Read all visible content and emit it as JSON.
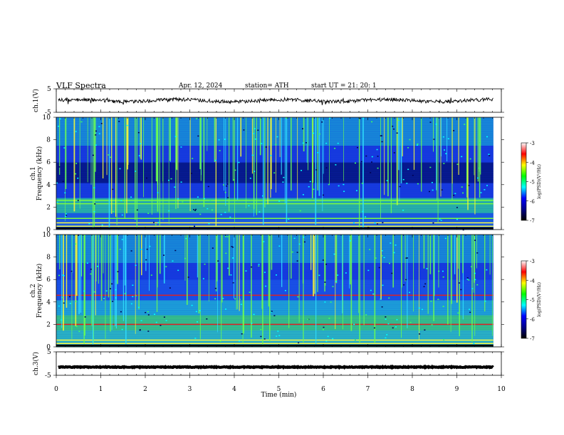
{
  "header": {
    "title": "VLF Spectra",
    "date": "Apr. 12, 2024",
    "station": "station= ATH",
    "start": "start UT = 21: 20: 1"
  },
  "colors": {
    "spectrogram_scale": [
      "#000000",
      "#00008b",
      "#0000ff",
      "#00ffff",
      "#00ff00",
      "#ffff00",
      "#ff0000",
      "#ffffff"
    ],
    "trace": "#000000"
  },
  "chart_data": [
    {
      "id": "ch1-waveform",
      "type": "line",
      "ylabel": "ch.1(V)",
      "ylim": [
        -5,
        5
      ],
      "yticks": [
        "5",
        "-5"
      ],
      "xlim": [
        0,
        10
      ],
      "trace_level": 0,
      "grid": false
    },
    {
      "id": "ch1-spectrogram",
      "type": "heatmap",
      "ylabel_top": "ch.1",
      "ylabel": "Frequency (kHz)",
      "ylim": [
        0,
        10
      ],
      "yticks": [
        "0",
        "2",
        "4",
        "6",
        "8",
        "10"
      ],
      "xlim": [
        0,
        10
      ],
      "data_end_min": 9.82,
      "colorbar": {
        "label": "log(PSD)(V²/Hz)",
        "range": [
          -7,
          -3
        ],
        "ticks": [
          "-3",
          "-4",
          "-5",
          "-6",
          "-7"
        ]
      },
      "bands_khz": [
        0.3,
        0.6,
        1.0,
        2.3,
        2.6
      ]
    },
    {
      "id": "ch2-spectrogram",
      "type": "heatmap",
      "ylabel_top": "ch.2",
      "ylabel": "Frequency (kHz)",
      "ylim": [
        0,
        10
      ],
      "yticks": [
        "0",
        "2",
        "4",
        "6",
        "8",
        "10"
      ],
      "xlim": [
        0,
        10
      ],
      "data_end_min": 9.82,
      "colorbar": {
        "label": "log(PSD)(V²/Hz)",
        "range": [
          -7,
          -3
        ],
        "ticks": [
          "-3",
          "-4",
          "-5",
          "-6",
          "-7"
        ]
      },
      "bands_khz": [
        0.3,
        0.6,
        2.0,
        4.6
      ]
    },
    {
      "id": "ch3-waveform",
      "type": "line",
      "ylabel": "ch.3(V)",
      "ylim": [
        -5,
        5
      ],
      "yticks": [
        "5",
        "-5"
      ],
      "xlim": [
        0,
        10
      ],
      "trace_level": -1.5,
      "xlabel": "Time (min)",
      "xticks": [
        "0",
        "1",
        "2",
        "3",
        "4",
        "5",
        "6",
        "7",
        "8",
        "9",
        "10"
      ],
      "grid": false
    }
  ]
}
